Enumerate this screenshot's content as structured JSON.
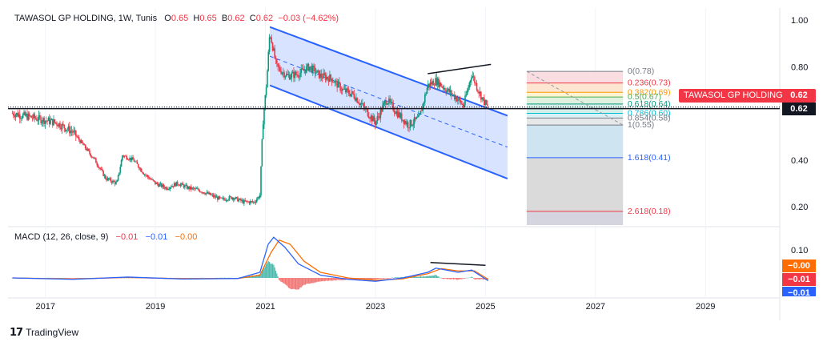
{
  "header": {
    "symbol": "TAWASOL GP HOLDING, 1W, Tunis",
    "o_label": "O",
    "o_value": "0.65",
    "h_label": "H",
    "h_value": "0.65",
    "b_label": "B",
    "b_value": "0.62",
    "c_label": "C",
    "c_value": "0.62",
    "change": "−0.03 (−4.62%)"
  },
  "macd_header": {
    "title": "MACD (12, 26, close, 9)",
    "hist": "−0.01",
    "macd": "−0.01",
    "signal": "−0.00"
  },
  "price_labels": {
    "symbol_tag": "TAWASOL GP HOLDING",
    "last_price": "0.62",
    "crosshair_price": "0.62"
  },
  "macd_labels": {
    "signal_tag": "−0.00",
    "hist_tag": "−0.01",
    "macd_tag": "−0.01"
  },
  "footer": {
    "brand": "TradingView"
  },
  "colors": {
    "up": "#089981",
    "down": "#f23645",
    "channel": "#2962ff",
    "macd": "#2962ff",
    "signal": "#ff6d00",
    "hist_up": "#26a69a",
    "hist_down": "#ef5350"
  },
  "chart_data": {
    "type": "candlestick",
    "price_axis": {
      "ticks": [
        "1.00",
        "0.80",
        "0.40",
        "0.20"
      ],
      "range": [
        0.15,
        1.02
      ]
    },
    "macd_axis": {
      "ticks": [
        "0.10"
      ],
      "range": [
        -0.03,
        0.17
      ]
    },
    "time_axis": {
      "ticks": [
        "2017",
        "2019",
        "2021",
        "2023",
        "2025",
        "2027",
        "2029"
      ]
    },
    "price_path": [
      [
        2016.4,
        0.6
      ],
      [
        2016.8,
        0.58
      ],
      [
        2017.2,
        0.56
      ],
      [
        2017.5,
        0.52
      ],
      [
        2017.7,
        0.46
      ],
      [
        2017.9,
        0.4
      ],
      [
        2018.1,
        0.32
      ],
      [
        2018.3,
        0.3
      ],
      [
        2018.4,
        0.42
      ],
      [
        2018.6,
        0.4
      ],
      [
        2018.8,
        0.34
      ],
      [
        2019.0,
        0.3
      ],
      [
        2019.2,
        0.28
      ],
      [
        2019.4,
        0.3
      ],
      [
        2019.6,
        0.28
      ],
      [
        2019.8,
        0.27
      ],
      [
        2020.0,
        0.25
      ],
      [
        2020.2,
        0.23
      ],
      [
        2020.4,
        0.24
      ],
      [
        2020.6,
        0.22
      ],
      [
        2020.8,
        0.22
      ],
      [
        2020.9,
        0.25
      ],
      [
        2020.95,
        0.55
      ],
      [
        2021.02,
        0.73
      ],
      [
        2021.08,
        0.95
      ],
      [
        2021.2,
        0.8
      ],
      [
        2021.4,
        0.76
      ],
      [
        2021.6,
        0.77
      ],
      [
        2021.8,
        0.8
      ],
      [
        2022.0,
        0.76
      ],
      [
        2022.2,
        0.75
      ],
      [
        2022.4,
        0.7
      ],
      [
        2022.6,
        0.68
      ],
      [
        2022.8,
        0.62
      ],
      [
        2023.0,
        0.56
      ],
      [
        2023.2,
        0.66
      ],
      [
        2023.4,
        0.6
      ],
      [
        2023.6,
        0.55
      ],
      [
        2023.8,
        0.58
      ],
      [
        2023.95,
        0.72
      ],
      [
        2024.1,
        0.74
      ],
      [
        2024.3,
        0.7
      ],
      [
        2024.5,
        0.66
      ],
      [
        2024.6,
        0.63
      ],
      [
        2024.75,
        0.77
      ],
      [
        2024.85,
        0.71
      ],
      [
        2024.95,
        0.66
      ],
      [
        2025.05,
        0.62
      ]
    ],
    "channel": {
      "upper": [
        [
          2021.08,
          0.97
        ],
        [
          2025.4,
          0.59
        ]
      ],
      "lower": [
        [
          2021.08,
          0.72
        ],
        [
          2025.4,
          0.32
        ]
      ],
      "mid": [
        [
          2021.08,
          0.845
        ],
        [
          2025.4,
          0.455
        ]
      ]
    },
    "resistance_line": [
      [
        2023.95,
        0.77
      ],
      [
        2025.1,
        0.81
      ]
    ],
    "horizontal_line": 0.62,
    "fibonacci": {
      "x_range": [
        2025.75,
        2027.5
      ],
      "levels": [
        {
          "ratio": "0",
          "value": 0.78,
          "label": "0(0.78)"
        },
        {
          "ratio": "0.236",
          "value": 0.73,
          "label": "0.236(0.73)"
        },
        {
          "ratio": "0.382",
          "value": 0.69,
          "label": "0.382(0.69)"
        },
        {
          "ratio": "0.5",
          "value": 0.67,
          "label": "0.5(0.67)"
        },
        {
          "ratio": "0.618",
          "value": 0.64,
          "label": "0.618(0.64)"
        },
        {
          "ratio": "0.786",
          "value": 0.6,
          "label": "0.786(0.60)"
        },
        {
          "ratio": "0.854",
          "value": 0.58,
          "label": "0.854(0.58)"
        },
        {
          "ratio": "1",
          "value": 0.55,
          "label": "1(0.55)"
        },
        {
          "ratio": "1.618",
          "value": 0.41,
          "label": "1.618(0.41)"
        },
        {
          "ratio": "2.618",
          "value": 0.18,
          "label": "2.618(0.18)"
        }
      ]
    },
    "macd_path": [
      [
        2016.4,
        0.0
      ],
      [
        2017.5,
        -0.005
      ],
      [
        2018.5,
        0.003
      ],
      [
        2019.5,
        -0.004
      ],
      [
        2020.5,
        -0.002
      ],
      [
        2020.9,
        0.02
      ],
      [
        2021.05,
        0.12
      ],
      [
        2021.15,
        0.145
      ],
      [
        2021.35,
        0.11
      ],
      [
        2021.6,
        0.05
      ],
      [
        2022.0,
        0.01
      ],
      [
        2022.5,
        -0.005
      ],
      [
        2023.0,
        -0.012
      ],
      [
        2023.5,
        0.0
      ],
      [
        2023.95,
        0.02
      ],
      [
        2024.1,
        0.035
      ],
      [
        2024.5,
        0.02
      ],
      [
        2024.75,
        0.028
      ],
      [
        2025.05,
        -0.01
      ]
    ],
    "signal_path": [
      [
        2016.4,
        0.0
      ],
      [
        2017.5,
        -0.004
      ],
      [
        2018.5,
        0.002
      ],
      [
        2019.5,
        -0.003
      ],
      [
        2020.5,
        -0.002
      ],
      [
        2020.9,
        0.01
      ],
      [
        2021.1,
        0.09
      ],
      [
        2021.25,
        0.135
      ],
      [
        2021.45,
        0.12
      ],
      [
        2021.7,
        0.06
      ],
      [
        2022.0,
        0.02
      ],
      [
        2022.5,
        0.0
      ],
      [
        2023.0,
        -0.008
      ],
      [
        2023.5,
        -0.003
      ],
      [
        2023.95,
        0.015
      ],
      [
        2024.2,
        0.033
      ],
      [
        2024.5,
        0.025
      ],
      [
        2024.8,
        0.025
      ],
      [
        2025.05,
        -0.005
      ]
    ],
    "macd_divergence_line": [
      [
        2024.0,
        0.055
      ],
      [
        2025.0,
        0.045
      ]
    ]
  }
}
